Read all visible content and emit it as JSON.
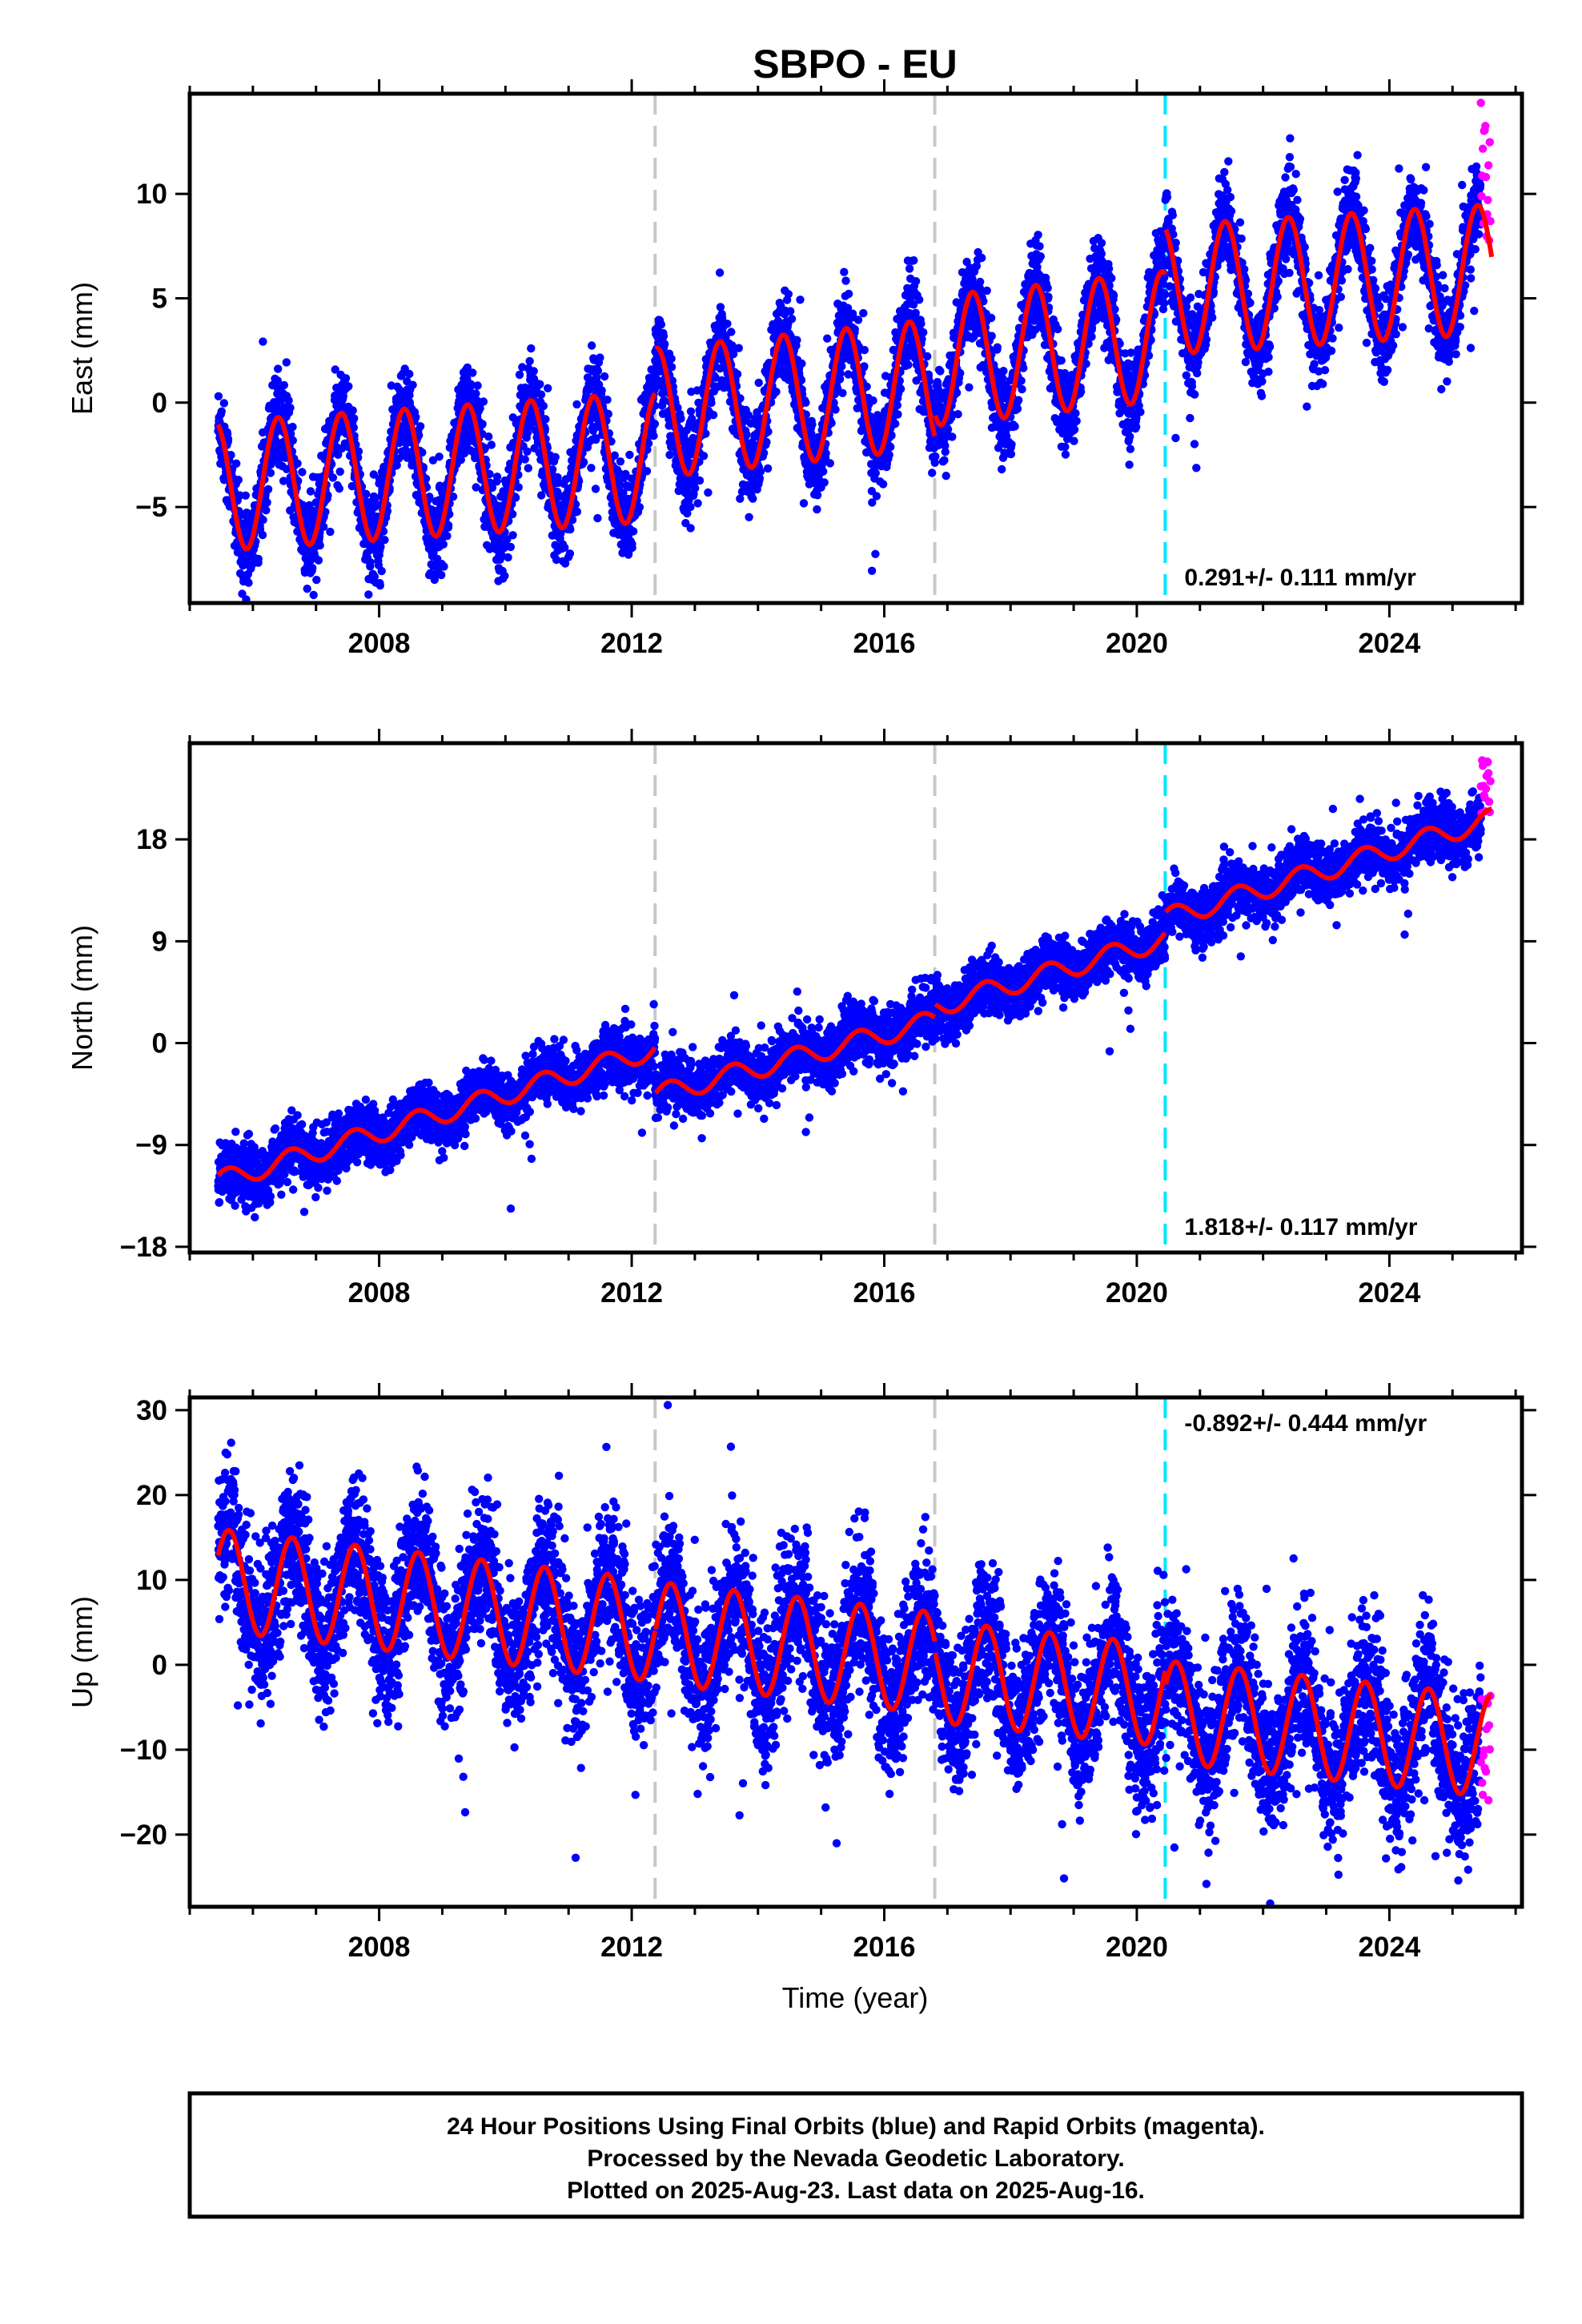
{
  "title": "SBPO - EU",
  "colors": {
    "final": "#0000ff",
    "rapid": "#ff00ff",
    "model": "#ff0000",
    "equipment_change": "#c8c8c8",
    "earthquake": "#00e5ff"
  },
  "x_label": "Time (year)",
  "caption": [
    "24 Hour Positions Using Final Orbits (blue) and Rapid Orbits (magenta).",
    "Processed by the Nevada Geodetic Laboratory.",
    "Plotted on 2025-Aug-23. Last data on 2025-Aug-16."
  ],
  "chart_data": [
    {
      "type": "scatter",
      "component": "east",
      "ylabel": "East (mm)",
      "xlim": [
        2005.0,
        2026.1
      ],
      "ylim": [
        -9.6,
        14.8
      ],
      "xticks": [
        2008,
        2012,
        2016,
        2020,
        2024
      ],
      "yticks": [
        -5,
        0,
        5,
        10
      ],
      "rate_label": "0.291+/- 0.111 mm/yr",
      "offsets": [
        {
          "year": 2012.37,
          "kind": "gray"
        },
        {
          "year": 2016.8,
          "kind": "gray"
        },
        {
          "year": 2020.45,
          "kind": "cyan"
        }
      ],
      "model": {
        "start": 2005.45,
        "end": 2025.62,
        "segments": [
          {
            "start": 2005.45,
            "mean_start": -4.0,
            "mean_end": -2.6
          },
          {
            "start": 2012.37,
            "mean_start": -0.5,
            "mean_end": 0.9
          },
          {
            "start": 2016.8,
            "mean_start": 2.0,
            "mean_end": 3.2
          },
          {
            "start": 2020.45,
            "mean_start": 5.4,
            "mean_end": 6.4
          }
        ],
        "amplitude": 3.1,
        "peak_phase": 0.4
      },
      "scatter_sigma": 1.0,
      "rapid": {
        "start": 2025.45,
        "y_range": [
          7.5,
          14.5
        ]
      }
    },
    {
      "type": "scatter",
      "component": "north",
      "ylabel": "North (mm)",
      "xlim": [
        2005.0,
        2026.1
      ],
      "ylim": [
        -18.5,
        26.5
      ],
      "xticks": [
        2008,
        2012,
        2016,
        2020,
        2024
      ],
      "yticks": [
        -18,
        -9,
        0,
        9,
        18
      ],
      "rate_label": "1.818+/- 0.117 mm/yr",
      "offsets": [
        {
          "year": 2012.37,
          "kind": "gray"
        },
        {
          "year": 2016.8,
          "kind": "gray"
        },
        {
          "year": 2020.45,
          "kind": "cyan"
        }
      ],
      "model": {
        "start": 2005.45,
        "end": 2025.62,
        "segments": [
          {
            "start": 2005.45,
            "mean_start": -12.2,
            "mean_end": -0.5
          },
          {
            "start": 2012.37,
            "mean_start": -4.6,
            "mean_end": 2.0
          },
          {
            "start": 2016.8,
            "mean_start": 3.2,
            "mean_end": 9.2
          },
          {
            "start": 2020.45,
            "mean_start": 11.0,
            "mean_end": 19.8
          }
        ],
        "amplitude": 0.9,
        "peak_phase": 0.6
      },
      "scatter_sigma": 1.2,
      "rapid": {
        "start": 2025.45,
        "y_range": [
          20.0,
          25.5
        ]
      }
    },
    {
      "type": "scatter",
      "component": "up",
      "ylabel": "Up (mm)",
      "xlim": [
        2005.0,
        2026.1
      ],
      "ylim": [
        -28.5,
        31.5
      ],
      "xticks": [
        2008,
        2012,
        2016,
        2020,
        2024
      ],
      "yticks": [
        -20,
        -10,
        0,
        10,
        20,
        30
      ],
      "rate_label": "-0.892+/- 0.444 mm/yr",
      "offsets": [
        {
          "year": 2012.37,
          "kind": "gray"
        },
        {
          "year": 2016.8,
          "kind": "gray"
        },
        {
          "year": 2020.45,
          "kind": "cyan"
        }
      ],
      "model": {
        "start": 2005.45,
        "end": 2025.62,
        "segments": [
          {
            "start": 2005.45,
            "mean_start": 10.0,
            "mean_end": 4.0
          },
          {
            "start": 2012.37,
            "mean_start": 3.8,
            "mean_end": 0.2
          },
          {
            "start": 2016.8,
            "mean_start": -0.8,
            "mean_end": -3.6
          },
          {
            "start": 2020.45,
            "mean_start": -5.5,
            "mean_end": -9.6
          }
        ],
        "amplitude": 6.0,
        "peak_phase": 0.62
      },
      "scatter_sigma": 4.2,
      "rapid": {
        "start": 2025.45,
        "y_range": [
          -16.0,
          -3.0
        ]
      }
    }
  ]
}
